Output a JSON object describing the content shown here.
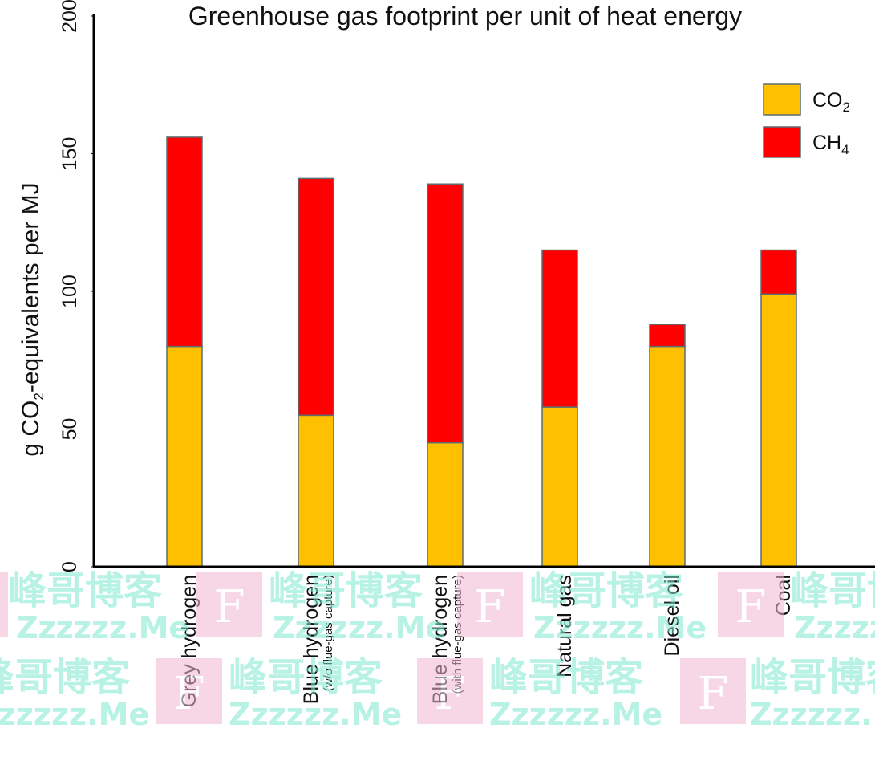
{
  "chart_data": {
    "type": "bar",
    "stacked": true,
    "title": "Greenhouse gas footprint per unit of heat energy",
    "ylabel": {
      "prefix": "g CO",
      "sub": "2",
      "suffix": "-equivalents per MJ"
    },
    "ylim": [
      0,
      200
    ],
    "yticks": [
      0,
      50,
      100,
      150,
      200
    ],
    "categories": [
      {
        "label": "Grey hydrogen",
        "sub": ""
      },
      {
        "label": "Blue hydrogen",
        "sub": "(w/o flue-gas capture)"
      },
      {
        "label": "Blue hydrogen",
        "sub": "(with flue-gas capture)"
      },
      {
        "label": "Natural gas",
        "sub": ""
      },
      {
        "label": "Diesel oil",
        "sub": ""
      },
      {
        "label": "Coal",
        "sub": ""
      }
    ],
    "series": [
      {
        "name": "CO2",
        "label": "CO",
        "label_sub": "2",
        "color": "#FFC000",
        "values": [
          80,
          55,
          45,
          58,
          80,
          99
        ]
      },
      {
        "name": "CH4",
        "label": "CH",
        "label_sub": "4",
        "color": "#FF0000",
        "values": [
          76,
          86,
          94,
          57,
          8,
          16
        ]
      }
    ],
    "legend": "top-right",
    "grid": false
  },
  "watermark": {
    "cn": "峰哥博客",
    "en": "Zzzzzz.Me",
    "letter": "F"
  }
}
